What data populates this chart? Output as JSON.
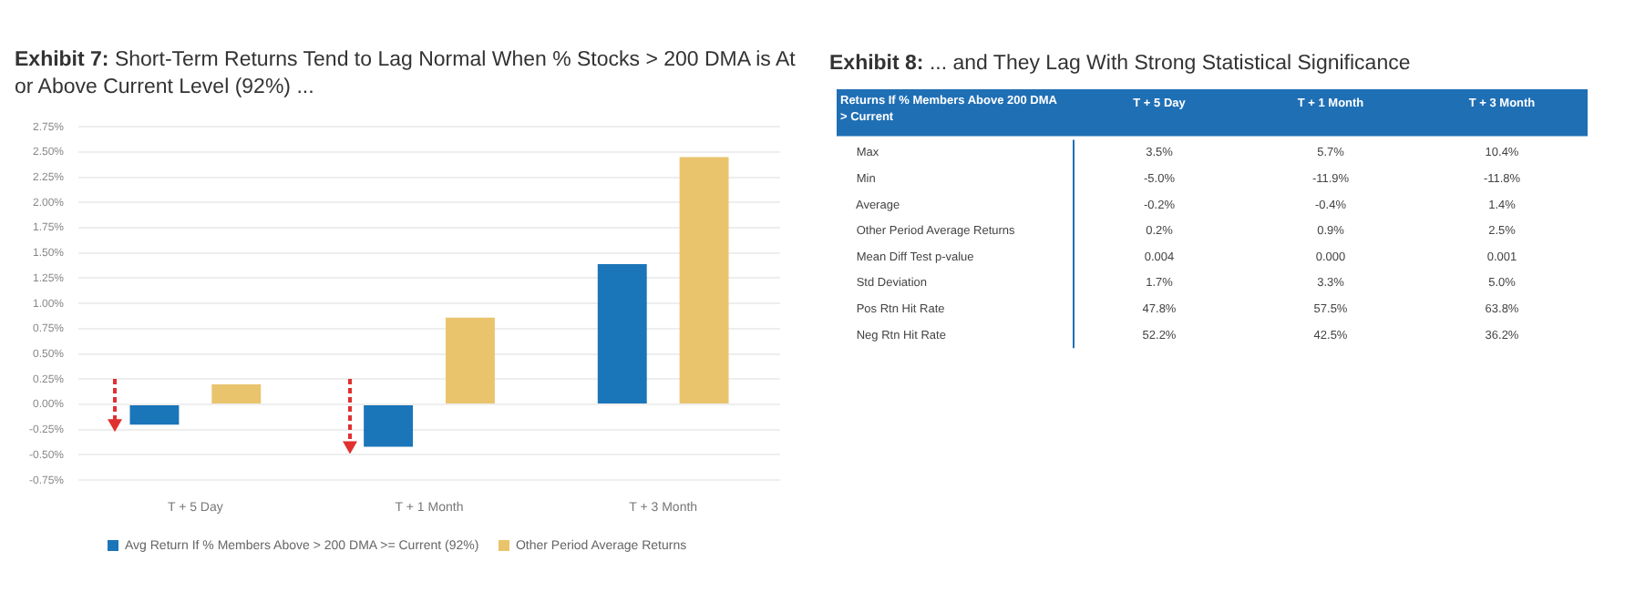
{
  "chart_data": [
    {
      "type": "bar",
      "title": "Exhibit 7:  Short-Term Returns Tend to Lag Normal When % Stocks > 200 DMA is At or Above Current Level (92%) ...",
      "categories": [
        "T + 5 Day",
        "T + 1 Month",
        "T + 3 Month"
      ],
      "series": [
        {
          "name": "Avg Return If % Members Above > 200 DMA >= Current (92%)",
          "color": "#1b75b9",
          "values": [
            -0.2,
            -0.42,
            1.39
          ]
        },
        {
          "name": "Other Period Average Returns",
          "color": "#e9c46c",
          "values": [
            0.2,
            0.86,
            2.45
          ]
        }
      ],
      "ylim": [
        -0.75,
        2.75
      ],
      "yticks": [
        {
          "value": -0.75,
          "label": "-0.75%"
        },
        {
          "value": -0.5,
          "label": "-0.50%"
        },
        {
          "value": -0.25,
          "label": "-0.25%"
        },
        {
          "value": 0,
          "label": "0.00%"
        },
        {
          "value": 0.25,
          "label": "0.25%"
        },
        {
          "value": 0.5,
          "label": "0.50%"
        },
        {
          "value": 0.75,
          "label": "0.75%"
        },
        {
          "value": 1,
          "label": "1.00%"
        },
        {
          "value": 1.25,
          "label": "1.25%"
        },
        {
          "value": 1.5,
          "label": "1.50%"
        },
        {
          "value": 1.75,
          "label": "1.75%"
        },
        {
          "value": 2,
          "label": "2.00%"
        },
        {
          "value": 2.25,
          "label": "2.25%"
        },
        {
          "value": 2.5,
          "label": "2.50%"
        },
        {
          "value": 2.75,
          "label": "2.75%"
        }
      ],
      "grid": "y",
      "legend": "bottom"
    },
    {
      "type": "heatmap",
      "title": "Exhibit 8:  ... and They Lag With Strong Statistical Significance",
      "ylabel": "Returns If % Members Above 200 DMA > Current",
      "categories": [
        "T + 5 Day",
        "T + 1 Month",
        "T + 3 Month"
      ],
      "y_categories": [
        "Max",
        "Min",
        "Average",
        "Other Period Average Returns",
        "Mean Diff Test p-value",
        "Std Deviation",
        "Pos Rtn Hit Rate",
        "Neg Rtn Hit Rate"
      ],
      "cells": [
        [
          3.5,
          5.7,
          10.4
        ],
        [
          -5.0,
          -11.9,
          -11.8
        ],
        [
          -0.2,
          -0.4,
          1.4
        ],
        [
          0.2,
          0.9,
          2.5
        ],
        [
          0.004,
          0.0,
          0.001
        ],
        [
          1.7,
          3.3,
          5.0
        ],
        [
          47.8,
          57.5,
          63.8
        ],
        [
          52.2,
          42.5,
          36.2
        ]
      ],
      "cell_labels": [
        [
          "3.5%",
          "5.7%",
          "10.4%"
        ],
        [
          "-5.0%",
          "-11.9%",
          "-11.8%"
        ],
        [
          "-0.2%",
          "-0.4%",
          "1.4%"
        ],
        [
          "0.2%",
          "0.9%",
          "2.5%"
        ],
        [
          "0.004",
          "0.000",
          "0.001"
        ],
        [
          "1.7%",
          "3.3%",
          "5.0%"
        ],
        [
          "47.8%",
          "57.5%",
          "63.8%"
        ],
        [
          "52.2%",
          "42.5%",
          "36.2%"
        ]
      ]
    }
  ]
}
